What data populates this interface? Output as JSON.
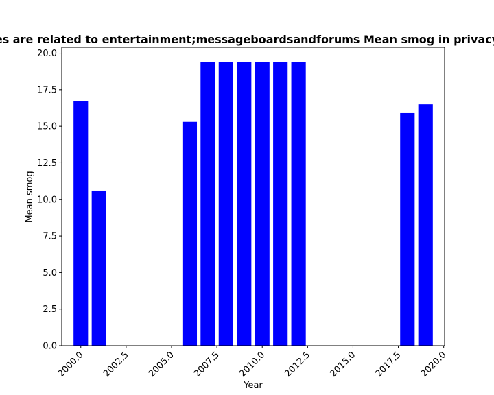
{
  "chart_data": {
    "type": "bar",
    "title": "es are related to entertainment;messageboardsandforums Mean smog in privacy",
    "xlabel": "Year",
    "ylabel": "Mean smog",
    "x": [
      2000,
      2001,
      2006,
      2007,
      2008,
      2009,
      2010,
      2011,
      2012,
      2018,
      2019
    ],
    "values": [
      16.7,
      10.6,
      15.3,
      19.4,
      19.4,
      19.4,
      19.4,
      19.4,
      19.4,
      15.9,
      16.5
    ],
    "xlim": [
      1998.95,
      2020.05
    ],
    "ylim": [
      0,
      20.4
    ],
    "xticks": [
      "2000.0",
      "2002.5",
      "2005.0",
      "2007.5",
      "2010.0",
      "2012.5",
      "2015.0",
      "2017.5",
      "2020.0"
    ],
    "yticks": [
      "0.0",
      "2.5",
      "5.0",
      "7.5",
      "10.0",
      "12.5",
      "15.0",
      "17.5",
      "20.0"
    ],
    "bar_color": "#0000ff",
    "grid": false,
    "legend": "none"
  }
}
